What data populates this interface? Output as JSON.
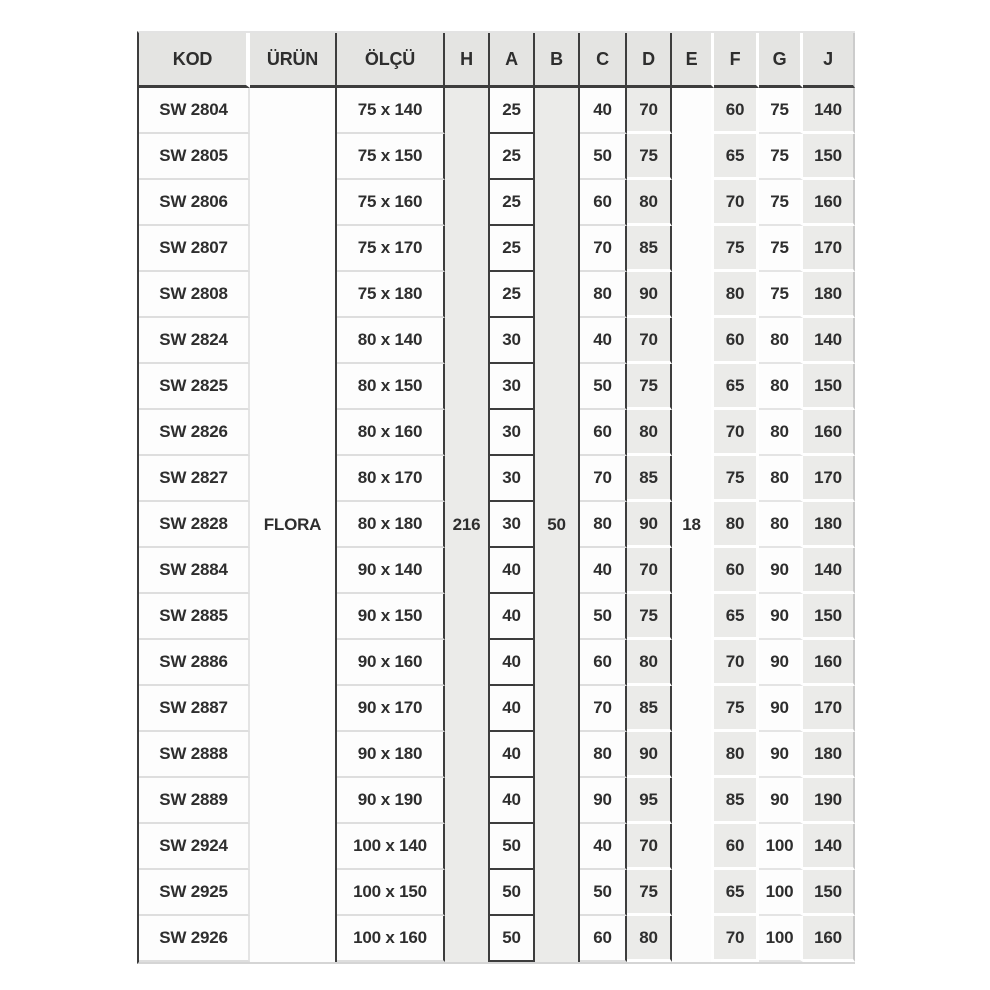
{
  "table": {
    "headers": {
      "kod": "KOD",
      "urun": "ÜRÜN",
      "olcu": "ÖLÇÜ",
      "h": "H",
      "a": "A",
      "b": "B",
      "c": "C",
      "d": "D",
      "e": "E",
      "f": "F",
      "g": "G",
      "j": "J"
    },
    "merged": {
      "urun": "FLORA",
      "h": "216",
      "b": "50",
      "e": "18"
    },
    "rows": [
      {
        "kod": "SW 2804",
        "olcu": "75 x 140",
        "a": "25",
        "c": "40",
        "d": "70",
        "f": "60",
        "g": "75",
        "j": "140"
      },
      {
        "kod": "SW 2805",
        "olcu": "75 x 150",
        "a": "25",
        "c": "50",
        "d": "75",
        "f": "65",
        "g": "75",
        "j": "150"
      },
      {
        "kod": "SW 2806",
        "olcu": "75 x 160",
        "a": "25",
        "c": "60",
        "d": "80",
        "f": "70",
        "g": "75",
        "j": "160"
      },
      {
        "kod": "SW 2807",
        "olcu": "75 x 170",
        "a": "25",
        "c": "70",
        "d": "85",
        "f": "75",
        "g": "75",
        "j": "170"
      },
      {
        "kod": "SW 2808",
        "olcu": "75 x 180",
        "a": "25",
        "c": "80",
        "d": "90",
        "f": "80",
        "g": "75",
        "j": "180"
      },
      {
        "kod": "SW 2824",
        "olcu": "80 x 140",
        "a": "30",
        "c": "40",
        "d": "70",
        "f": "60",
        "g": "80",
        "j": "140"
      },
      {
        "kod": "SW 2825",
        "olcu": "80 x 150",
        "a": "30",
        "c": "50",
        "d": "75",
        "f": "65",
        "g": "80",
        "j": "150"
      },
      {
        "kod": "SW 2826",
        "olcu": "80 x 160",
        "a": "30",
        "c": "60",
        "d": "80",
        "f": "70",
        "g": "80",
        "j": "160"
      },
      {
        "kod": "SW 2827",
        "olcu": "80 x 170",
        "a": "30",
        "c": "70",
        "d": "85",
        "f": "75",
        "g": "80",
        "j": "170"
      },
      {
        "kod": "SW 2828",
        "olcu": "80 x 180",
        "a": "30",
        "c": "80",
        "d": "90",
        "f": "80",
        "g": "80",
        "j": "180"
      },
      {
        "kod": "SW 2884",
        "olcu": "90 x 140",
        "a": "40",
        "c": "40",
        "d": "70",
        "f": "60",
        "g": "90",
        "j": "140"
      },
      {
        "kod": "SW 2885",
        "olcu": "90 x 150",
        "a": "40",
        "c": "50",
        "d": "75",
        "f": "65",
        "g": "90",
        "j": "150"
      },
      {
        "kod": "SW 2886",
        "olcu": "90 x 160",
        "a": "40",
        "c": "60",
        "d": "80",
        "f": "70",
        "g": "90",
        "j": "160"
      },
      {
        "kod": "SW 2887",
        "olcu": "90 x 170",
        "a": "40",
        "c": "70",
        "d": "85",
        "f": "75",
        "g": "90",
        "j": "170"
      },
      {
        "kod": "SW 2888",
        "olcu": "90 x 180",
        "a": "40",
        "c": "80",
        "d": "90",
        "f": "80",
        "g": "90",
        "j": "180"
      },
      {
        "kod": "SW 2889",
        "olcu": "90 x 190",
        "a": "40",
        "c": "90",
        "d": "95",
        "f": "85",
        "g": "90",
        "j": "190"
      },
      {
        "kod": "SW 2924",
        "olcu": "100 x 140",
        "a": "50",
        "c": "40",
        "d": "70",
        "f": "60",
        "g": "100",
        "j": "140"
      },
      {
        "kod": "SW 2925",
        "olcu": "100 x 150",
        "a": "50",
        "c": "50",
        "d": "75",
        "f": "65",
        "g": "100",
        "j": "150"
      },
      {
        "kod": "SW 2926",
        "olcu": "100 x 160",
        "a": "50",
        "c": "60",
        "d": "80",
        "f": "70",
        "g": "100",
        "j": "160"
      }
    ],
    "colors": {
      "header_bg": "#e4e4e2",
      "shaded_cell_bg": "#ebebe9",
      "dark_border": "#3d3d3d",
      "light_border": "#dedede",
      "text": "#2e2e2e"
    }
  }
}
